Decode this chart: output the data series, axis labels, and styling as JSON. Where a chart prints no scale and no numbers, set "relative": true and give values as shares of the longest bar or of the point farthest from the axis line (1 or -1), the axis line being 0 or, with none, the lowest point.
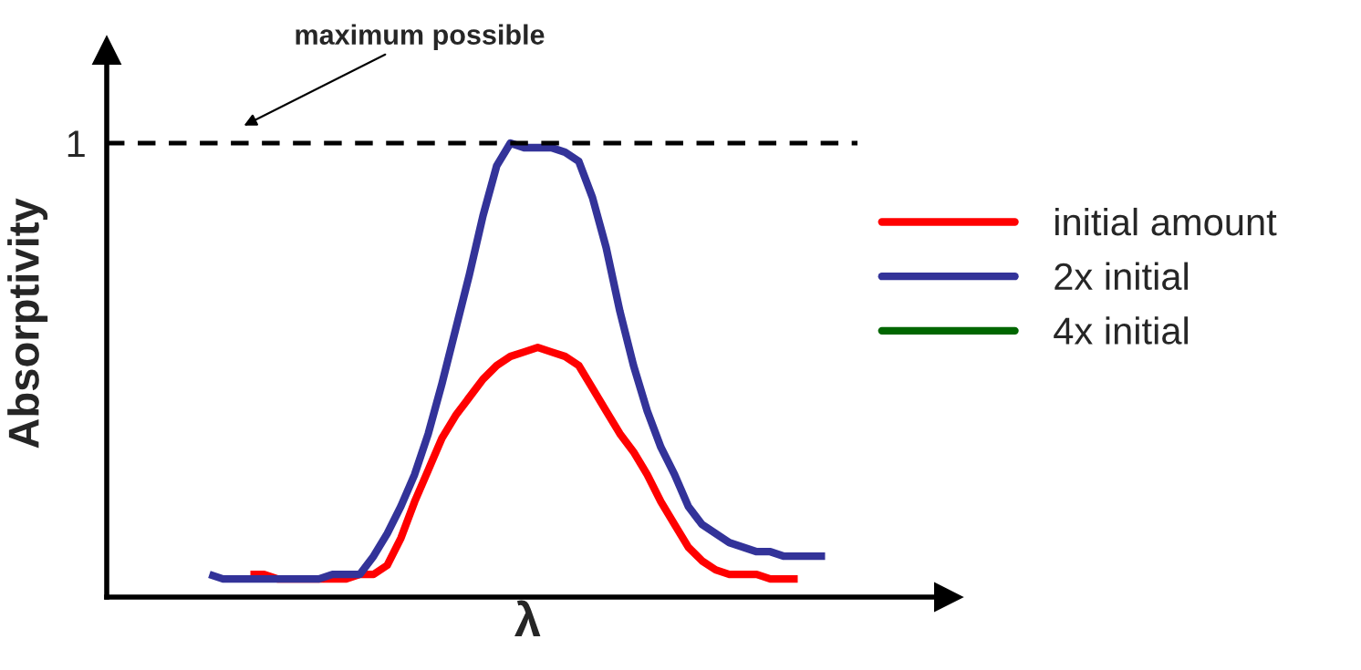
{
  "chart_data": {
    "type": "line",
    "xlabel": "λ",
    "ylabel": "Absorptivity",
    "relative": true,
    "legend": "right",
    "categories": [
      null,
      null,
      null,
      null,
      null,
      null,
      null,
      null,
      null,
      null,
      null,
      null,
      null,
      null,
      null,
      null,
      null,
      null,
      null,
      null,
      null,
      null,
      null,
      null,
      null,
      null,
      null,
      null,
      null,
      null,
      null,
      null,
      null,
      null,
      null,
      null,
      null,
      null,
      null,
      null,
      null,
      null,
      null,
      null,
      null,
      null
    ],
    "series": [
      {
        "name": "initial amount",
        "color": "#ff0000",
        "values": [
          null,
          null,
          null,
          0.05,
          0.05,
          0.04,
          null,
          null,
          0.04,
          0.04,
          0.04,
          0.05,
          0.05,
          0.07,
          0.13,
          0.21,
          0.28,
          0.35,
          0.4,
          0.44,
          0.48,
          0.51,
          0.53,
          0.54,
          0.55,
          0.54,
          0.53,
          0.51,
          0.46,
          0.41,
          0.36,
          0.32,
          0.27,
          0.21,
          0.16,
          0.11,
          0.08,
          0.06,
          0.05,
          0.05,
          0.05,
          0.04,
          0.04,
          0.04,
          null,
          null
        ]
      },
      {
        "name": "2x initial",
        "color": "#333399",
        "values": [
          0.05,
          0.04,
          0.04,
          0.04,
          0.04,
          0.04,
          0.04,
          0.04,
          0.04,
          0.05,
          0.05,
          0.05,
          0.09,
          0.14,
          0.2,
          0.27,
          0.36,
          0.47,
          0.59,
          0.71,
          0.84,
          0.95,
          1.0,
          0.99,
          0.99,
          0.99,
          0.98,
          0.96,
          0.88,
          0.77,
          0.63,
          0.51,
          0.41,
          0.33,
          0.27,
          0.2,
          0.16,
          0.14,
          0.12,
          0.11,
          0.1,
          0.1,
          0.09,
          0.09,
          0.09,
          0.09
        ]
      },
      {
        "name": "4x initial",
        "color": "#006600",
        "values": [
          null,
          null,
          null,
          null,
          null,
          null,
          null,
          null,
          null,
          null,
          null,
          null,
          null,
          null,
          null,
          null,
          null,
          null,
          null,
          null,
          null,
          null,
          null,
          null,
          null,
          null,
          null,
          null,
          null,
          null,
          null,
          null,
          null,
          null,
          null,
          null,
          null,
          null,
          null,
          null,
          null,
          null,
          null,
          null,
          null,
          null
        ]
      }
    ],
    "ref_lines": [
      {
        "axis": "y",
        "value": 1,
        "label": "1",
        "color": "#000000",
        "line_style": "dashed"
      }
    ],
    "annotations": [
      "maximum possible"
    ]
  }
}
